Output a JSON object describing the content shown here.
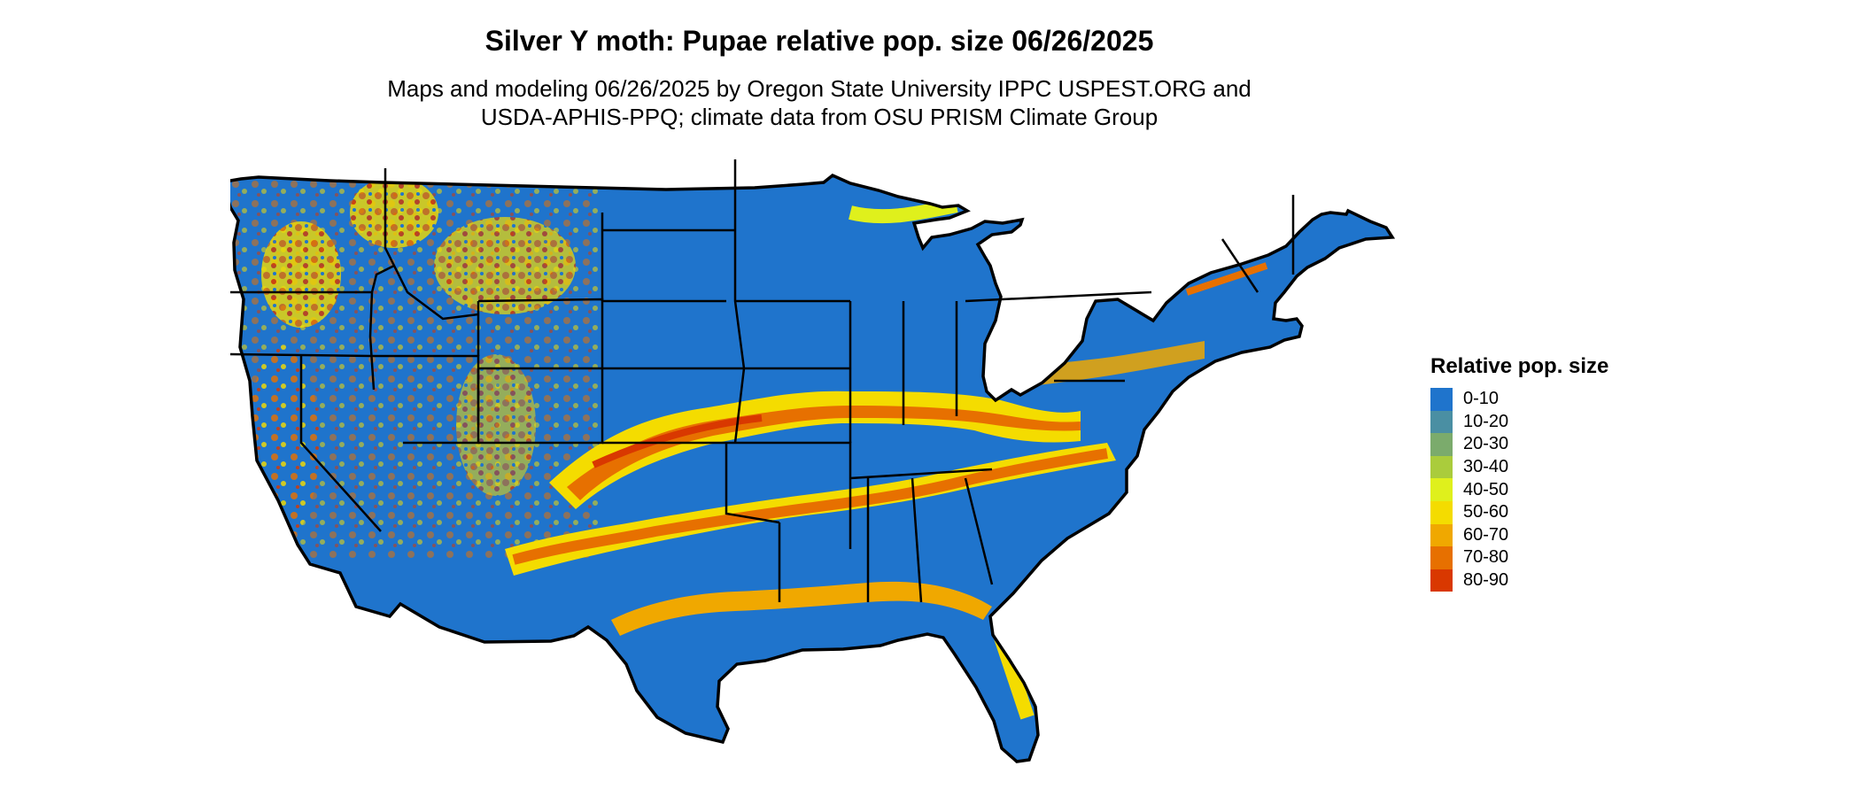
{
  "title": "Silver Y moth: Pupae relative pop. size 06/26/2025",
  "subtitle": {
    "line1": "Maps and modeling 06/26/2025 by Oregon State University IPPC USPEST.ORG and",
    "line2": "USDA-APHIS-PPQ; climate data from OSU PRISM Climate Group"
  },
  "map": {
    "region": "conterminous-us",
    "base_class": "0-10",
    "boundary_color": "#000000"
  },
  "legend": {
    "title": "Relative pop. size",
    "items": [
      {
        "label": "0-10",
        "color": "#1f74cc"
      },
      {
        "label": "10-20",
        "color": "#4a8fa3"
      },
      {
        "label": "20-30",
        "color": "#7bab6c"
      },
      {
        "label": "30-40",
        "color": "#aacc3c"
      },
      {
        "label": "40-50",
        "color": "#dff01c"
      },
      {
        "label": "50-60",
        "color": "#f4dc00"
      },
      {
        "label": "60-70",
        "color": "#f0a800"
      },
      {
        "label": "70-80",
        "color": "#e77000"
      },
      {
        "label": "80-90",
        "color": "#d93800"
      }
    ]
  }
}
